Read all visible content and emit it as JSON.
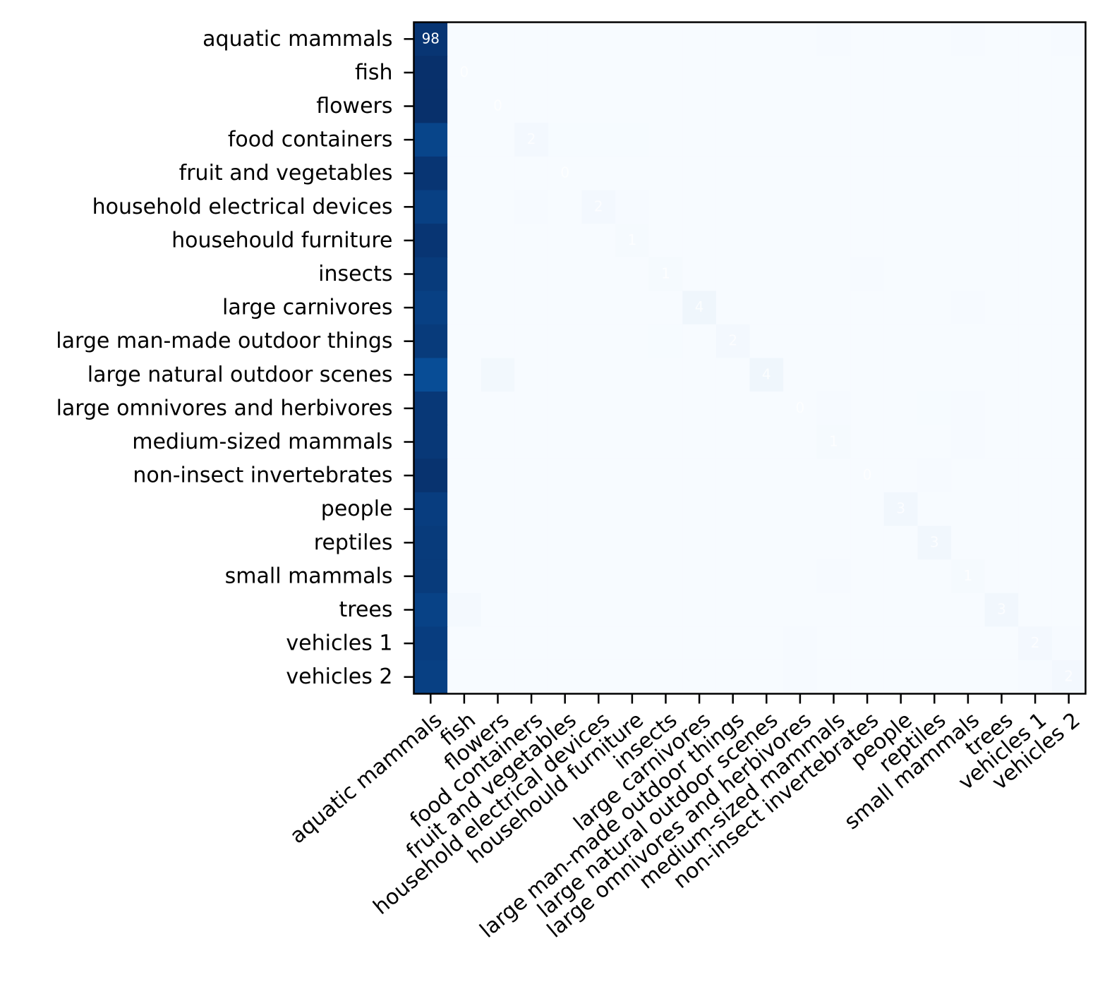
{
  "chart_data": {
    "type": "heatmap",
    "title": "",
    "xlabel": "",
    "ylabel": "",
    "colormap": "Blues",
    "categories": [
      "aquatic mammals",
      "fish",
      "flowers",
      "food containers",
      "fruit and vegetables",
      "household electrical devices",
      "househould furniture",
      "insects",
      "large carnivores",
      "large man-made outdoor things",
      "large natural outdoor scenes",
      "large omnivores and herbivores",
      "medium-sized mammals",
      "non-insect invertebrates",
      "people",
      "reptiles",
      "small mammals",
      "trees",
      "vehicles 1",
      "vehicles 2"
    ],
    "row_first_col_values": [
      98,
      100,
      100,
      92,
      98,
      94,
      98,
      96,
      94,
      96,
      89,
      97,
      97,
      99,
      95,
      96,
      96,
      93,
      95,
      94
    ],
    "diagonal_labels": [
      "98",
      "0",
      "0",
      "2",
      "0",
      "2",
      "1",
      "1",
      "4",
      "2",
      "4",
      "0",
      "1",
      "0",
      "3",
      "3",
      "1",
      "3",
      "2",
      "2"
    ],
    "off_diagonal_cells": [
      {
        "row": 0,
        "col": 12,
        "value": 0.4
      },
      {
        "row": 0,
        "col": 16,
        "value": 0.4
      },
      {
        "row": 0,
        "col": 19,
        "value": 0.4
      },
      {
        "row": 3,
        "col": 4,
        "value": 0.3
      },
      {
        "row": 3,
        "col": 5,
        "value": 0.3
      },
      {
        "row": 3,
        "col": 6,
        "value": 0.3
      },
      {
        "row": 5,
        "col": 3,
        "value": 0.6
      },
      {
        "row": 5,
        "col": 6,
        "value": 0.4
      },
      {
        "row": 7,
        "col": 13,
        "value": 0.6
      },
      {
        "row": 8,
        "col": 16,
        "value": 0.6
      },
      {
        "row": 9,
        "col": 7,
        "value": 0.3
      },
      {
        "row": 10,
        "col": 2,
        "value": 2.5
      },
      {
        "row": 11,
        "col": 12,
        "value": 0.4
      },
      {
        "row": 11,
        "col": 15,
        "value": 0.3
      },
      {
        "row": 11,
        "col": 16,
        "value": 0.6
      },
      {
        "row": 12,
        "col": 16,
        "value": 0.6
      },
      {
        "row": 13,
        "col": 15,
        "value": 0.4
      },
      {
        "row": 16,
        "col": 12,
        "value": 0.6
      },
      {
        "row": 17,
        "col": 1,
        "value": 1.5
      },
      {
        "row": 18,
        "col": 11,
        "value": 0.6
      },
      {
        "row": 18,
        "col": 19,
        "value": 0.4
      },
      {
        "row": 19,
        "col": 11,
        "value": 0.6
      },
      {
        "row": 19,
        "col": 18,
        "value": 0.4
      }
    ],
    "value_range": [
      0,
      100
    ],
    "grid": false,
    "legend": "none"
  }
}
